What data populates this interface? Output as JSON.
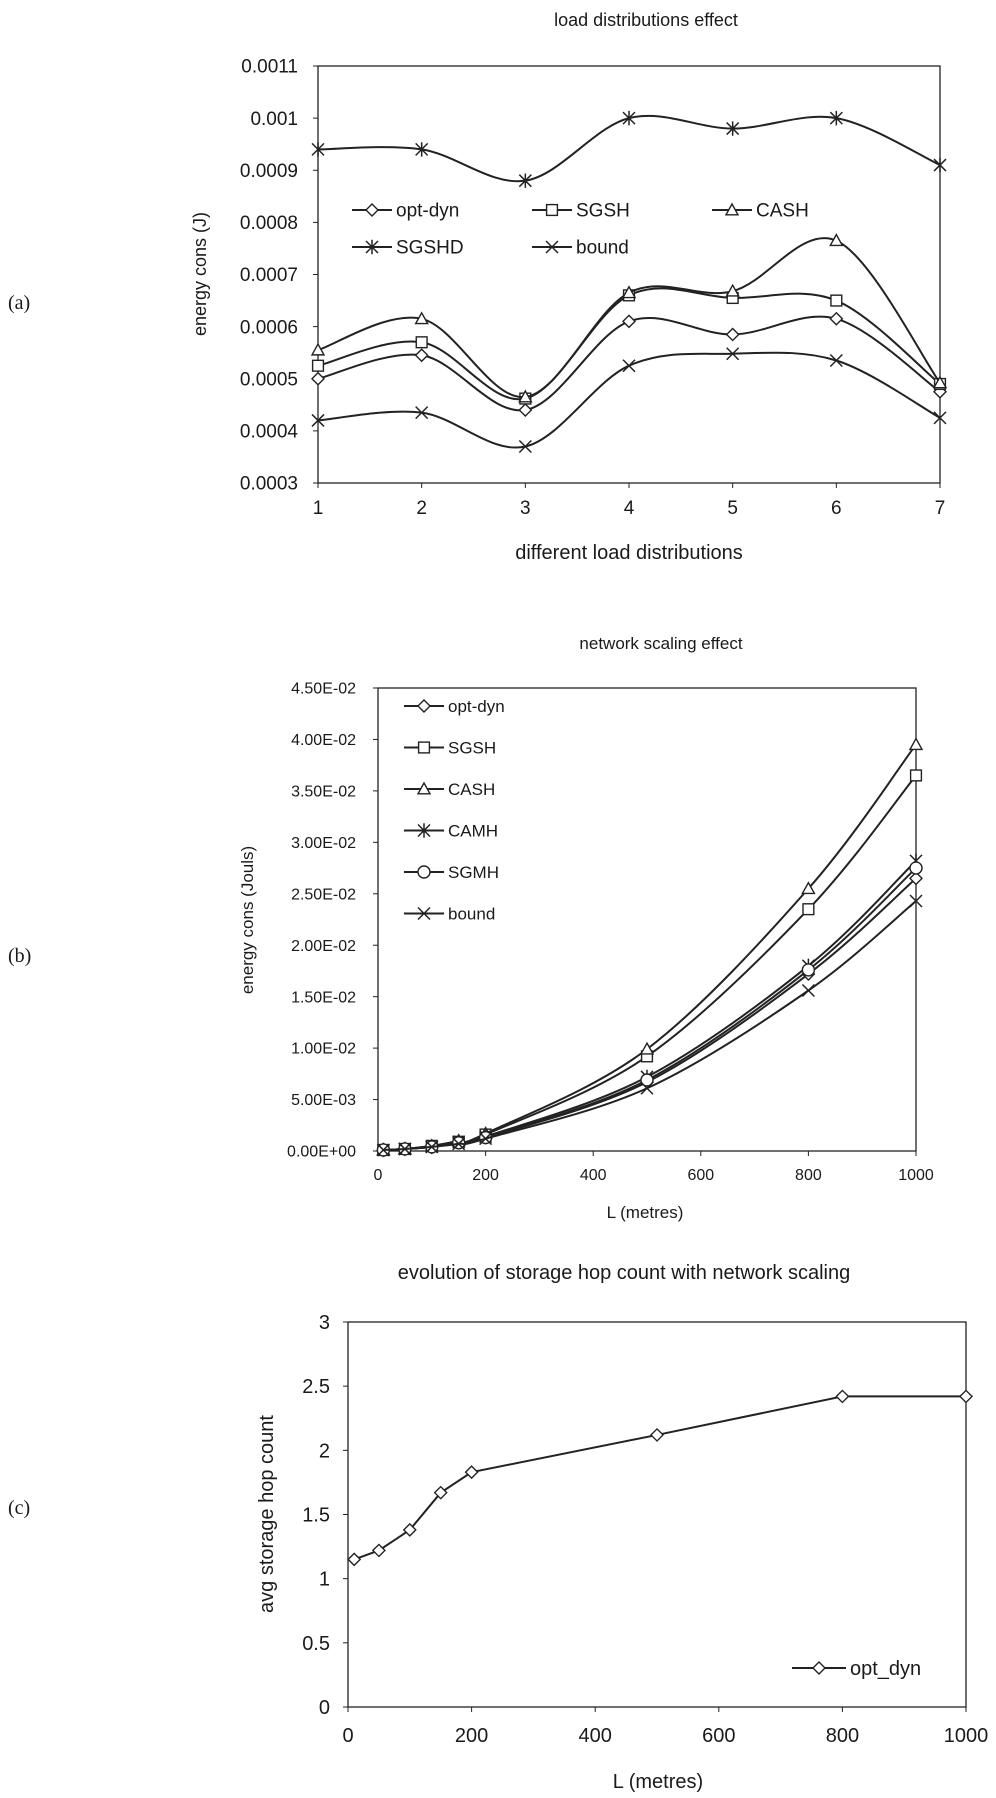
{
  "panels": [
    {
      "label": "(a)"
    },
    {
      "label": "(b)"
    },
    {
      "label": "(c)"
    }
  ],
  "chart_data": [
    {
      "type": "line",
      "title": "load distributions effect",
      "xlabel": "different load distributions",
      "ylabel": "energy cons (J)",
      "x": [
        1,
        2,
        3,
        4,
        5,
        6,
        7
      ],
      "x_ticks": [
        "1",
        "2",
        "3",
        "4",
        "5",
        "6",
        "7"
      ],
      "xlim": [
        1,
        7
      ],
      "ylim": [
        0.0003,
        0.0011
      ],
      "y_ticks": [
        "0.0003",
        "0.0004",
        "0.0005",
        "0.0006",
        "0.0007",
        "0.0008",
        "0.0009",
        "0.001",
        "0.0011"
      ],
      "legend_position": "upper-middle inside plot, 3 columns",
      "grid": false,
      "series": [
        {
          "name": "opt-dyn",
          "marker": "diamond",
          "values": [
            0.0005,
            0.000545,
            0.00044,
            0.00061,
            0.000585,
            0.000615,
            0.000475
          ]
        },
        {
          "name": "SGSH",
          "marker": "square",
          "values": [
            0.000525,
            0.00057,
            0.000462,
            0.00066,
            0.000655,
            0.00065,
            0.00049
          ]
        },
        {
          "name": "CASH",
          "marker": "triangle",
          "values": [
            0.000555,
            0.000615,
            0.000465,
            0.000665,
            0.000668,
            0.000765,
            0.000492
          ]
        },
        {
          "name": "SGSHD",
          "marker": "asterisk",
          "values": [
            0.00094,
            0.00094,
            0.00088,
            0.001,
            0.00098,
            0.001,
            0.00091
          ]
        },
        {
          "name": "bound",
          "marker": "x",
          "values": [
            0.00042,
            0.000435,
            0.00037,
            0.000525,
            0.000548,
            0.000535,
            0.000425
          ]
        }
      ]
    },
    {
      "type": "line",
      "title": "network scaling effect",
      "xlabel": "L (metres)",
      "ylabel": "energy  cons (Jouls)",
      "x": [
        10,
        50,
        100,
        150,
        200,
        500,
        800,
        1000
      ],
      "x_ticks": [
        "0",
        "200",
        "400",
        "600",
        "800",
        "1000"
      ],
      "xlim": [
        0,
        1000
      ],
      "ylim": [
        0,
        0.045
      ],
      "y_ticks": [
        "0.00E+00",
        "5.00E-03",
        "1.00E-02",
        "1.50E-02",
        "2.00E-02",
        "2.50E-02",
        "3.00E-02",
        "3.50E-02",
        "4.00E-02",
        "4.50E-02"
      ],
      "legend_position": "top-left inside plot, 1 column",
      "grid": false,
      "series": [
        {
          "name": "opt-dyn",
          "marker": "diamond",
          "values": [
            0.0001,
            0.0002,
            0.0004,
            0.0008,
            0.0013,
            0.0067,
            0.0172,
            0.0265
          ]
        },
        {
          "name": "SGSH",
          "marker": "square",
          "values": [
            0.0001,
            0.0002,
            0.0005,
            0.0009,
            0.0016,
            0.0092,
            0.0235,
            0.0365
          ]
        },
        {
          "name": "CASH",
          "marker": "triangle",
          "values": [
            0.0001,
            0.0002,
            0.0005,
            0.001,
            0.0017,
            0.0099,
            0.0255,
            0.0395
          ]
        },
        {
          "name": "CAMH",
          "marker": "asterisk",
          "values": [
            0.0001,
            0.0002,
            0.0004,
            0.0009,
            0.0014,
            0.0072,
            0.018,
            0.0282
          ]
        },
        {
          "name": "SGMH",
          "marker": "circle",
          "values": [
            0.0001,
            0.0002,
            0.0004,
            0.0008,
            0.0013,
            0.0069,
            0.0176,
            0.0275
          ]
        },
        {
          "name": "bound",
          "marker": "x",
          "values": [
            0.0001,
            0.0002,
            0.0004,
            0.0007,
            0.0012,
            0.0061,
            0.0156,
            0.0243
          ]
        }
      ]
    },
    {
      "type": "line",
      "title": "evolution of storage hop count with network scaling",
      "xlabel": "L (metres)",
      "ylabel": "avg  storage hop count",
      "x": [
        10,
        50,
        100,
        150,
        200,
        500,
        800,
        1000
      ],
      "x_ticks": [
        "0",
        "200",
        "400",
        "600",
        "800",
        "1000"
      ],
      "xlim": [
        0,
        1000
      ],
      "ylim": [
        0,
        3
      ],
      "y_ticks": [
        "0",
        "0.5",
        "1",
        "1.5",
        "2",
        "2.5",
        "3"
      ],
      "legend_position": "bottom-right inside plot",
      "grid": false,
      "series": [
        {
          "name": "opt_dyn",
          "marker": "diamond",
          "values": [
            1.15,
            1.22,
            1.38,
            1.67,
            1.83,
            2.12,
            2.42,
            2.42
          ]
        }
      ]
    }
  ]
}
